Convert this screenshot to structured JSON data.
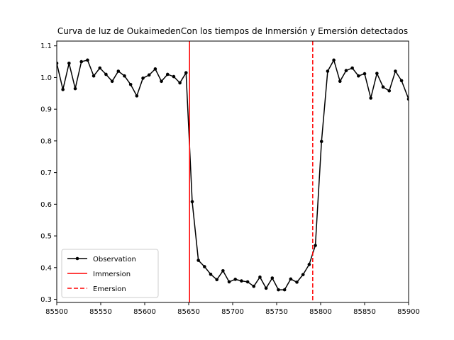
{
  "chart_data": {
    "type": "line",
    "title": "Curva de luz de OukaimedenCon los tiempos de Inmersión y Emersión detectados",
    "xlabel": "",
    "ylabel": "",
    "xlim": [
      85500,
      85900
    ],
    "ylim": [
      0.29,
      1.115
    ],
    "xticks": [
      85500,
      85550,
      85600,
      85650,
      85700,
      85750,
      85800,
      85850,
      85900
    ],
    "yticks": [
      0.3,
      0.4,
      0.5,
      0.6,
      0.7,
      0.8,
      0.9,
      1.0,
      1.1
    ],
    "grid": false,
    "legend_position": "lower-left",
    "series": [
      {
        "name": "Observation",
        "color": "#000000",
        "marker": "dot",
        "x": [
          85500,
          85507,
          85514,
          85521,
          85528,
          85535,
          85542,
          85549,
          85556,
          85563,
          85570,
          85577,
          85584,
          85591,
          85598,
          85605,
          85612,
          85619,
          85626,
          85633,
          85640,
          85647,
          85654,
          85661,
          85668,
          85675,
          85682,
          85689,
          85696,
          85703,
          85710,
          85717,
          85724,
          85731,
          85738,
          85745,
          85752,
          85759,
          85766,
          85773,
          85780,
          85787,
          85794,
          85801,
          85808,
          85815,
          85822,
          85829,
          85836,
          85843,
          85850,
          85857,
          85864,
          85871,
          85878,
          85885,
          85892,
          85900
        ],
        "y": [
          1.045,
          0.962,
          1.045,
          0.965,
          1.05,
          1.055,
          1.005,
          1.03,
          1.01,
          0.988,
          1.02,
          1.005,
          0.978,
          0.942,
          0.998,
          1.008,
          1.027,
          0.988,
          1.01,
          1.003,
          0.983,
          1.015,
          0.608,
          0.423,
          0.403,
          0.379,
          0.362,
          0.39,
          0.355,
          0.363,
          0.358,
          0.355,
          0.341,
          0.37,
          0.335,
          0.367,
          0.33,
          0.33,
          0.364,
          0.354,
          0.378,
          0.41,
          0.47,
          0.798,
          1.02,
          1.055,
          0.988,
          1.022,
          1.03,
          1.005,
          1.012,
          0.935,
          1.013,
          0.97,
          0.958,
          1.02,
          0.99,
          0.932
        ]
      },
      {
        "name": "Immersion",
        "color": "#ff0000",
        "style": "solid",
        "x_value": 85651
      },
      {
        "name": "Emersion",
        "color": "#ff0000",
        "style": "dashed",
        "x_value": 85791
      }
    ]
  }
}
